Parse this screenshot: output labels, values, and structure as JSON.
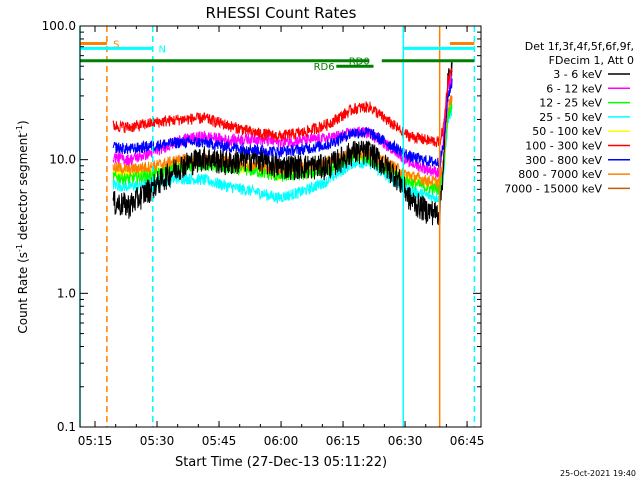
{
  "chart_data": {
    "type": "line",
    "title": "RHESSI Count Rates",
    "xlabel": "Start Time (27-Dec-13 05:11:22)",
    "ylabel_main": "Count Rate (s",
    "ylabel_sup": "-1",
    "ylabel_mid": " detector segment",
    "ylabel_sup2": "-1",
    "ylabel_end": ")",
    "y_scale": "log",
    "ylim": [
      0.1,
      100
    ],
    "xlim_minutes": [
      0,
      97
    ],
    "x_ticks": [
      {
        "label": "05:15",
        "minute": 3.63
      },
      {
        "label": "05:30",
        "minute": 18.63
      },
      {
        "label": "05:45",
        "minute": 33.63
      },
      {
        "label": "06:00",
        "minute": 48.63
      },
      {
        "label": "06:15",
        "minute": 63.63
      },
      {
        "label": "06:30",
        "minute": 78.63
      },
      {
        "label": "06:45",
        "minute": 93.63
      }
    ],
    "y_ticks": [
      {
        "label": "0.1",
        "value": 0.1
      },
      {
        "label": "1.0",
        "value": 1.0
      },
      {
        "label": "10.0",
        "value": 10.0
      },
      {
        "label": "100.0",
        "value": 100.0
      }
    ],
    "legend_header": [
      "Det 1f,3f,4f,5f,6f,9f,",
      "FDecim 1, Att 0"
    ],
    "legend_placement": "right",
    "series": [
      {
        "name": "3 - 6 keV",
        "color": "#000000",
        "x": [
          8,
          12,
          18,
          24,
          30,
          36,
          42,
          48,
          54,
          60,
          66,
          70,
          74,
          76,
          78,
          80,
          84,
          87,
          88,
          89,
          90
        ],
        "y": [
          4.8,
          4.6,
          6.5,
          9.0,
          10.5,
          9.5,
          10.5,
          9.0,
          9.0,
          9.0,
          11.5,
          11.5,
          9.0,
          8.0,
          6.5,
          5.0,
          4.2,
          4.0,
          10.0,
          40.0,
          45.0
        ]
      },
      {
        "name": "6 - 12 keV",
        "color": "#ff00ff",
        "x": [
          8,
          12,
          18,
          24,
          30,
          36,
          42,
          48,
          54,
          60,
          66,
          70,
          74,
          76,
          78,
          80,
          84,
          87,
          88,
          89,
          90
        ],
        "y": [
          10.5,
          10.0,
          11.5,
          14.0,
          15.0,
          14.0,
          14.5,
          13.5,
          14.0,
          14.5,
          16.0,
          16.0,
          13.0,
          12.0,
          10.5,
          9.5,
          8.5,
          8.0,
          15.0,
          35.0,
          40.0
        ]
      },
      {
        "name": "12 - 25 keV",
        "color": "#00ff00",
        "x": [
          8,
          12,
          18,
          24,
          30,
          36,
          42,
          48,
          54,
          60,
          66,
          70,
          74,
          76,
          78,
          80,
          84,
          87,
          88,
          89,
          90
        ],
        "y": [
          7.5,
          7.2,
          7.8,
          8.8,
          9.2,
          8.6,
          8.3,
          7.5,
          7.8,
          8.5,
          10.5,
          10.2,
          8.6,
          8.0,
          7.3,
          6.8,
          6.2,
          6.0,
          9.0,
          22.0,
          26.0
        ]
      },
      {
        "name": "25 - 50 keV",
        "color": "#00ffff",
        "x": [
          8,
          12,
          18,
          24,
          30,
          36,
          42,
          48,
          54,
          60,
          66,
          70,
          74,
          76,
          78,
          80,
          84,
          87,
          88,
          89,
          90
        ],
        "y": [
          6.5,
          6.3,
          6.8,
          7.3,
          7.1,
          6.3,
          5.8,
          5.2,
          5.8,
          7.0,
          9.5,
          9.5,
          7.6,
          7.0,
          6.4,
          5.9,
          5.4,
          5.2,
          8.0,
          20.0,
          24.0
        ]
      },
      {
        "name": "50 - 100 keV",
        "color": "#ffff00",
        "x": [
          8,
          12,
          18,
          24,
          30,
          36,
          42,
          48,
          54,
          60,
          66,
          70,
          74,
          76,
          78,
          80,
          84,
          87,
          88,
          89,
          90
        ],
        "y": [
          8.0,
          7.8,
          8.3,
          9.3,
          9.6,
          9.0,
          8.6,
          7.8,
          8.2,
          9.0,
          11.0,
          10.8,
          9.0,
          8.4,
          7.7,
          7.2,
          6.6,
          6.4,
          9.5,
          24.0,
          28.0
        ]
      },
      {
        "name": "100 - 300 keV",
        "color": "#ff0000",
        "x": [
          8,
          12,
          18,
          24,
          30,
          36,
          42,
          48,
          54,
          60,
          66,
          70,
          74,
          76,
          78,
          80,
          84,
          87,
          88,
          89,
          90
        ],
        "y": [
          18.0,
          17.5,
          19.0,
          20.0,
          20.5,
          18.0,
          16.0,
          15.0,
          16.0,
          18.5,
          24.0,
          25.0,
          20.0,
          18.0,
          16.0,
          15.0,
          14.0,
          13.5,
          18.0,
          40.0,
          48.0
        ]
      },
      {
        "name": "300 - 800 keV",
        "color": "#0000ff",
        "x": [
          8,
          12,
          18,
          24,
          30,
          36,
          42,
          48,
          54,
          60,
          66,
          70,
          74,
          76,
          78,
          80,
          84,
          87,
          88,
          89,
          90
        ],
        "y": [
          12.5,
          12.0,
          12.8,
          13.5,
          13.5,
          12.5,
          12.0,
          11.5,
          12.0,
          13.0,
          16.0,
          16.0,
          13.5,
          12.5,
          11.5,
          10.5,
          9.8,
          9.5,
          13.0,
          30.0,
          38.0
        ]
      },
      {
        "name": "800 - 7000 keV",
        "color": "#ff8000",
        "x": [
          8,
          12,
          18,
          24,
          30,
          36,
          42,
          48,
          54,
          60,
          66,
          70,
          74,
          76,
          78,
          80,
          84,
          87,
          88,
          89,
          90
        ],
        "y": [
          8.8,
          8.5,
          9.0,
          10.0,
          10.2,
          9.6,
          9.2,
          8.5,
          8.8,
          9.6,
          11.5,
          11.3,
          9.5,
          8.9,
          8.1,
          7.6,
          7.0,
          6.8,
          10.0,
          25.0,
          30.0
        ]
      },
      {
        "name": "7000 - 15000 keV",
        "color": "#c06000",
        "x": [],
        "y": []
      }
    ],
    "vertical_lines": [
      {
        "minute": 0.0,
        "color": "#00ffff",
        "style": "solid"
      },
      {
        "minute": 6.5,
        "color": "#ff8000",
        "style": "dashed"
      },
      {
        "minute": 17.6,
        "color": "#00ffff",
        "style": "dashed"
      },
      {
        "minute": 78.2,
        "color": "#00ffff",
        "style": "solid"
      },
      {
        "minute": 87.0,
        "color": "#ff8000",
        "style": "solid"
      },
      {
        "minute": 95.4,
        "color": "#00ffff",
        "style": "dashed"
      }
    ],
    "flag_bars": [
      {
        "label": "S",
        "color": "#ff8000",
        "y": 74,
        "segments": [
          [
            0,
            6.5
          ],
          [
            89.5,
            95.4
          ]
        ],
        "label_minute": 8.0
      },
      {
        "label": "N",
        "color": "#00ffff",
        "y": 68,
        "segments": [
          [
            0,
            17.6
          ],
          [
            78.2,
            95.4
          ]
        ],
        "label_minute": 19.0
      },
      {
        "label": "RD0",
        "color": "#008000",
        "y": 55,
        "segments": [
          [
            0,
            70
          ],
          [
            73,
            95.4
          ]
        ],
        "label_minute": 65.0
      },
      {
        "label": "RD6",
        "color": "#008000",
        "y": 50,
        "segments": [
          [
            62,
            71
          ]
        ],
        "label_minute": 56.5
      }
    ],
    "date_stamp": "25-Oct-2021 19:40"
  }
}
